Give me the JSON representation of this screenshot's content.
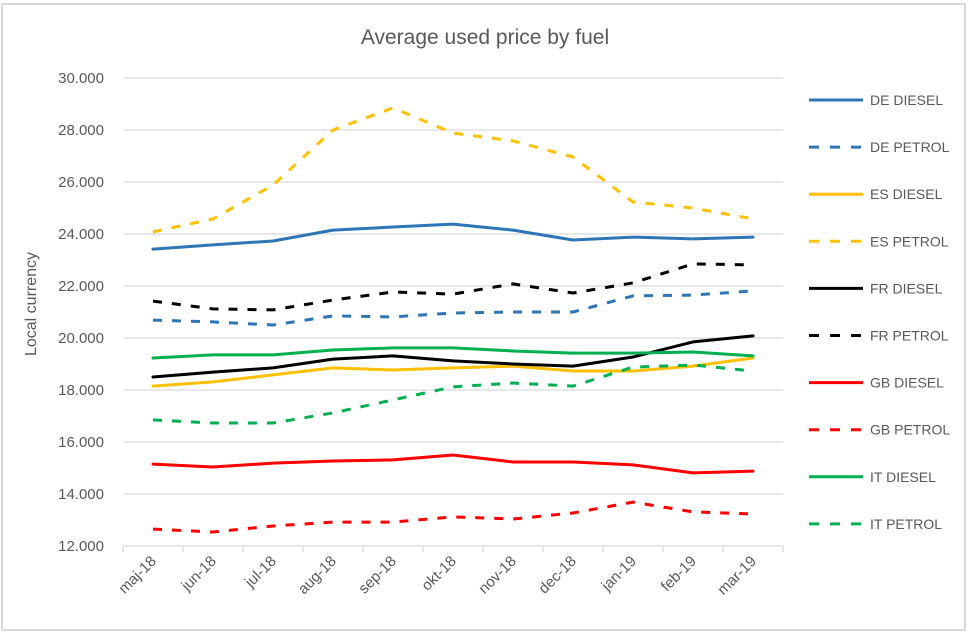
{
  "chart_data": {
    "type": "line",
    "title": "Average used price by fuel",
    "xlabel": "",
    "ylabel": "Local currency",
    "ylim": [
      12000,
      30000
    ],
    "ytick_step": 2000,
    "ytick_labels": [
      "12.000",
      "14.000",
      "16.000",
      "18.000",
      "20.000",
      "22.000",
      "24.000",
      "26.000",
      "28.000",
      "30.000"
    ],
    "grid": true,
    "legend_position": "right",
    "categories": [
      "maj-18",
      "jun-18",
      "jul-18",
      "aug-18",
      "sep-18",
      "okt-18",
      "nov-18",
      "dec-18",
      "jan-19",
      "feb-19",
      "mar-19"
    ],
    "series": [
      {
        "name": "DE DIESEL",
        "color": "#2e75b6",
        "style": "solid",
        "values": [
          23420,
          23580,
          23730,
          24150,
          24270,
          24380,
          24150,
          23770,
          23880,
          23810,
          23880
        ]
      },
      {
        "name": "DE PETROL",
        "color": "#2e75b6",
        "style": "dashed",
        "values": [
          20690,
          20620,
          20500,
          20850,
          20810,
          20960,
          21000,
          21000,
          21620,
          21650,
          21810
        ]
      },
      {
        "name": "ES DIESEL",
        "color": "#ffc000",
        "style": "solid",
        "values": [
          18150,
          18310,
          18580,
          18850,
          18770,
          18850,
          18920,
          18730,
          18730,
          18920,
          19230
        ]
      },
      {
        "name": "ES PETROL",
        "color": "#ffc000",
        "style": "dashed",
        "values": [
          24080,
          24580,
          25880,
          28000,
          28850,
          27880,
          27580,
          26960,
          25230,
          25000,
          24580
        ]
      },
      {
        "name": "FR DIESEL",
        "color": "#000000",
        "style": "solid",
        "values": [
          18500,
          18690,
          18850,
          19190,
          19310,
          19120,
          19000,
          18920,
          19270,
          19850,
          20080
        ]
      },
      {
        "name": "FR PETROL",
        "color": "#000000",
        "style": "dashed",
        "values": [
          21420,
          21120,
          21080,
          21460,
          21770,
          21690,
          22080,
          21730,
          22120,
          22850,
          22810
        ]
      },
      {
        "name": "GB DIESEL",
        "color": "#ff0000",
        "style": "solid",
        "values": [
          15150,
          15040,
          15190,
          15270,
          15310,
          15500,
          15230,
          15230,
          15120,
          14810,
          14880
        ]
      },
      {
        "name": "GB PETROL",
        "color": "#ff0000",
        "style": "dashed",
        "values": [
          12650,
          12540,
          12770,
          12920,
          12920,
          13120,
          13040,
          13270,
          13690,
          13310,
          13230
        ]
      },
      {
        "name": "IT DIESEL",
        "color": "#00b050",
        "style": "solid",
        "values": [
          19230,
          19350,
          19350,
          19540,
          19620,
          19620,
          19500,
          19420,
          19420,
          19460,
          19310
        ]
      },
      {
        "name": "IT PETROL",
        "color": "#00b050",
        "style": "dashed",
        "values": [
          16850,
          16730,
          16730,
          17120,
          17620,
          18120,
          18270,
          18150,
          18880,
          18960,
          18730
        ]
      }
    ]
  }
}
